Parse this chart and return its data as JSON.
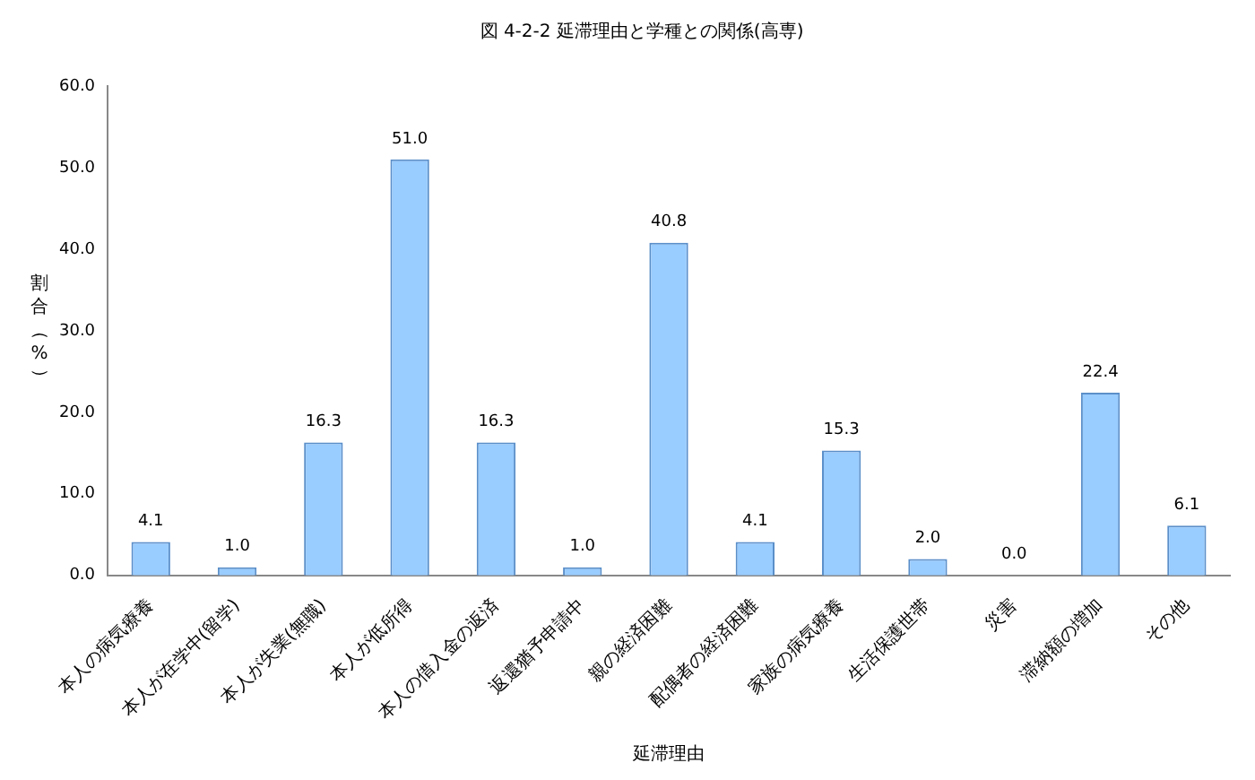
{
  "chart_data": {
    "type": "bar",
    "title": "図 4-2-2 延滞理由と学種との関係(高専)",
    "xlabel": "延滞理由",
    "ylabel": "割合（%）",
    "categories": [
      "本人の病気療養",
      "本人が在学中(留学)",
      "本人が失業(無職)",
      "本人が低所得",
      "本人の借入金の返済",
      "返還猶予申請中",
      "親の経済困難",
      "配偶者の経済困難",
      "家族の病気療養",
      "生活保護世帯",
      "災害",
      "滞納額の増加",
      "その他"
    ],
    "values": [
      4.1,
      1.0,
      16.3,
      51.0,
      16.3,
      1.0,
      40.8,
      4.1,
      15.3,
      2.0,
      0.0,
      22.4,
      6.1
    ],
    "value_labels": [
      "4.1",
      "1.0",
      "16.3",
      "51.0",
      "16.3",
      "1.0",
      "40.8",
      "4.1",
      "15.3",
      "2.0",
      "0.0",
      "22.4",
      "6.1"
    ],
    "color": "#99ccff",
    "ylim": [
      0,
      60
    ],
    "yticks": [
      {
        "value": 0,
        "label": "0.0"
      },
      {
        "value": 10,
        "label": "10.0"
      },
      {
        "value": 20,
        "label": "20.0"
      },
      {
        "value": 30,
        "label": "30.0"
      },
      {
        "value": 40,
        "label": "40.0"
      },
      {
        "value": 50,
        "label": "50.0"
      },
      {
        "value": 60,
        "label": "60.0"
      }
    ],
    "grid": false,
    "legend": false
  }
}
